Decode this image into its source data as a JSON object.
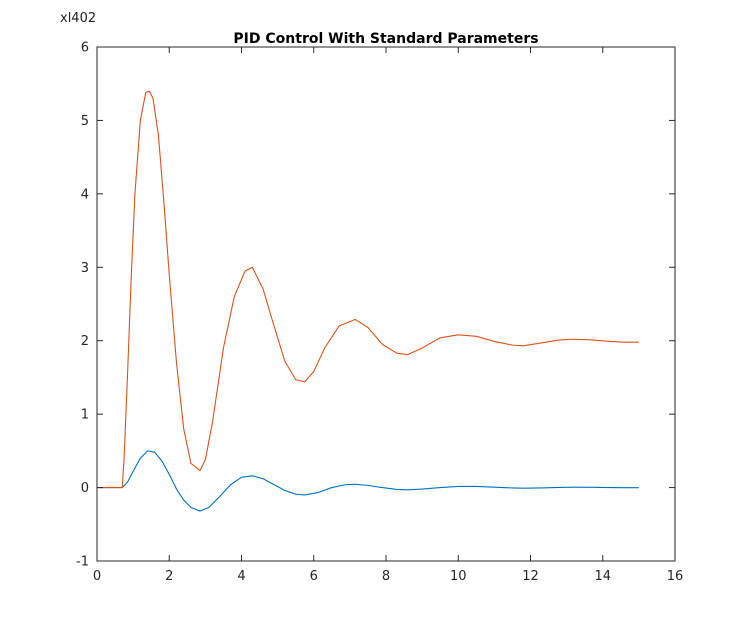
{
  "chart_data": {
    "type": "line",
    "title": "PID Control With Standard Parameters",
    "xlabel": "",
    "ylabel": "",
    "exponent_label": "xl402",
    "xlim": [
      0,
      16
    ],
    "ylim": [
      -1,
      6
    ],
    "xticks": [
      "0",
      "2",
      "4",
      "6",
      "8",
      "10",
      "12",
      "14",
      "16"
    ],
    "yticks": [
      "-1",
      "0",
      "1",
      "2",
      "3",
      "4",
      "5",
      "6"
    ],
    "grid": false,
    "series": [
      {
        "color": "#0072BD",
        "x": [
          0,
          0.7,
          0.85,
          1.0,
          1.2,
          1.4,
          1.6,
          1.8,
          2.0,
          2.2,
          2.4,
          2.6,
          2.85,
          3.1,
          3.4,
          3.7,
          4.0,
          4.3,
          4.6,
          4.9,
          5.2,
          5.5,
          5.75,
          6.1,
          6.5,
          6.9,
          7.15,
          7.5,
          7.9,
          8.3,
          8.6,
          9.0,
          9.5,
          10.0,
          10.5,
          11.0,
          11.5,
          11.8,
          12.3,
          12.8,
          13.2,
          13.7,
          14.2,
          14.6,
          15.0
        ],
        "y": [
          0,
          0,
          0.08,
          0.22,
          0.4,
          0.5,
          0.48,
          0.36,
          0.18,
          -0.02,
          -0.17,
          -0.27,
          -0.32,
          -0.27,
          -0.12,
          0.04,
          0.14,
          0.16,
          0.12,
          0.04,
          -0.04,
          -0.09,
          -0.1,
          -0.07,
          0.0,
          0.04,
          0.045,
          0.03,
          0.0,
          -0.025,
          -0.03,
          -0.02,
          0.0,
          0.015,
          0.015,
          0.005,
          -0.005,
          -0.008,
          -0.005,
          0.002,
          0.005,
          0.004,
          0.0,
          -0.002,
          -0.002
        ]
      },
      {
        "color": "#D95319",
        "x": [
          0,
          0.7,
          0.75,
          0.85,
          0.95,
          1.05,
          1.2,
          1.35,
          1.45,
          1.55,
          1.7,
          1.85,
          2.0,
          2.2,
          2.4,
          2.6,
          2.85,
          3.0,
          3.2,
          3.5,
          3.8,
          4.1,
          4.3,
          4.6,
          4.9,
          5.2,
          5.5,
          5.75,
          6.0,
          6.3,
          6.7,
          7.15,
          7.5,
          7.9,
          8.3,
          8.6,
          9.0,
          9.5,
          10.0,
          10.5,
          11.0,
          11.5,
          11.8,
          12.3,
          12.8,
          13.2,
          13.7,
          14.2,
          14.6,
          15.0
        ],
        "y": [
          0,
          0,
          0.4,
          1.6,
          2.9,
          4.0,
          5.0,
          5.38,
          5.4,
          5.3,
          4.8,
          3.9,
          2.9,
          1.7,
          0.8,
          0.33,
          0.23,
          0.38,
          0.9,
          1.9,
          2.6,
          2.95,
          3.0,
          2.7,
          2.2,
          1.72,
          1.47,
          1.44,
          1.58,
          1.9,
          2.2,
          2.29,
          2.18,
          1.95,
          1.83,
          1.81,
          1.9,
          2.04,
          2.08,
          2.06,
          1.99,
          1.94,
          1.93,
          1.97,
          2.01,
          2.02,
          2.01,
          1.99,
          1.98,
          1.98
        ]
      }
    ]
  }
}
